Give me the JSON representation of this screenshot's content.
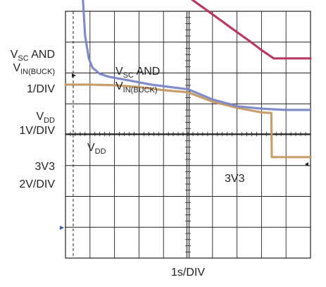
{
  "chart_data": {
    "type": "line",
    "title": "",
    "xlabel": "1s/DIV",
    "grid": true,
    "grid_divisions": {
      "x": 10,
      "y": 8
    },
    "channel_labels": [
      {
        "main": "V",
        "sub": "SC",
        "rest": " AND"
      },
      {
        "main": "V",
        "sub": "IN(BUCK)",
        "rest": ""
      },
      {
        "main": "1/DIV",
        "sub": "",
        "rest": ""
      },
      {
        "main": "V",
        "sub": "DD",
        "rest": ""
      },
      {
        "main": "1V/DIV",
        "sub": "",
        "rest": ""
      },
      {
        "main": "3V3",
        "sub": "",
        "rest": ""
      },
      {
        "main": "2V/DIV",
        "sub": "",
        "rest": ""
      }
    ],
    "trace_labels": {
      "vsc_line1": {
        "main": "V",
        "sub": "SC",
        "rest": " AND"
      },
      "vsc_line2": {
        "main": "V",
        "sub": "IN(BUCK)",
        "rest": ""
      },
      "vdd": {
        "main": "V",
        "sub": "DD",
        "rest": ""
      },
      "v3v3": {
        "main": "3V3",
        "sub": "",
        "rest": ""
      }
    },
    "series": [
      {
        "id": "vsc",
        "color": "#b5305a",
        "x": [
          0.0,
          0.05,
          0.5,
          0.65,
          0.8,
          1.0,
          2.0,
          3.0,
          4.0,
          5.0,
          6.0,
          7.0,
          7.5,
          8.0,
          8.5,
          9.0,
          10.0
        ],
        "y": [
          7.0,
          7.0,
          6.98,
          6.9,
          6.82,
          6.7,
          6.12,
          5.55,
          5.0,
          4.45,
          3.88,
          3.3,
          3.02,
          2.72,
          2.45,
          2.45,
          2.45
        ]
      },
      {
        "id": "vdd",
        "color": "#7b86c6",
        "x": [
          0.0,
          0.05,
          0.5,
          0.6,
          0.65,
          0.7,
          0.8,
          0.95,
          1.1,
          1.4,
          1.8,
          2.5,
          3.5,
          5.0,
          6.0,
          7.0,
          8.0,
          9.0,
          10.0
        ],
        "y": [
          7.0,
          7.0,
          6.98,
          6.9,
          6.0,
          4.5,
          3.2,
          2.45,
          2.15,
          1.95,
          1.85,
          1.75,
          1.6,
          1.45,
          1.12,
          0.9,
          0.82,
          0.78,
          0.78
        ]
      },
      {
        "id": "v3v3",
        "color": "#c49a65",
        "x": [
          0.0,
          1.0,
          2.0,
          3.0,
          4.0,
          5.0,
          6.0,
          7.0,
          8.0,
          8.4,
          8.42,
          9.0,
          10.0
        ],
        "y": [
          1.6,
          1.6,
          1.58,
          1.52,
          1.42,
          1.35,
          1.05,
          0.85,
          0.7,
          0.68,
          -0.75,
          -0.75,
          -0.75
        ]
      }
    ]
  }
}
